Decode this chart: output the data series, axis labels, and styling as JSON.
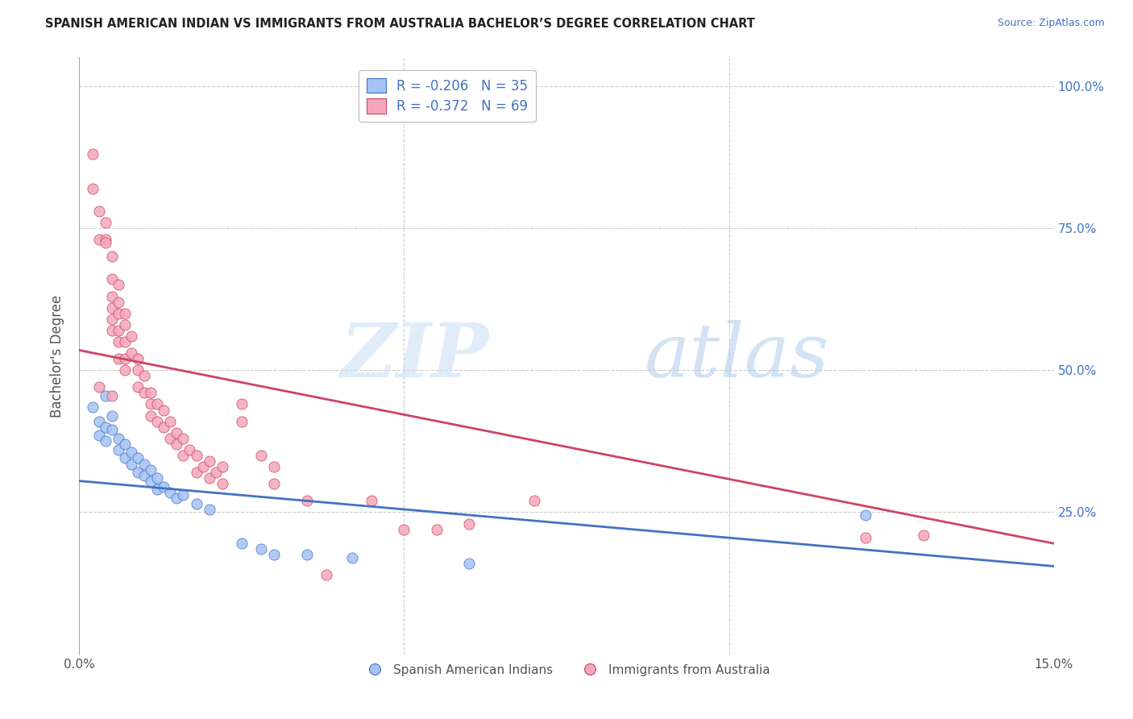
{
  "title": "SPANISH AMERICAN INDIAN VS IMMIGRANTS FROM AUSTRALIA BACHELOR’S DEGREE CORRELATION CHART",
  "source": "Source: ZipAtlas.com",
  "ylabel": "Bachelor's Degree",
  "right_ytick_labels": [
    "100.0%",
    "75.0%",
    "50.0%",
    "25.0%"
  ],
  "right_ytick_values": [
    1.0,
    0.75,
    0.5,
    0.25
  ],
  "xlim": [
    0.0,
    0.15
  ],
  "ylim": [
    0.0,
    1.05
  ],
  "legend_r1": "R = -0.206   N = 35",
  "legend_r2": "R = -0.372   N = 69",
  "color_blue": "#a4c2f4",
  "color_pink": "#f4a7b9",
  "trendline_blue": "#4472c4",
  "trendline_pink": "#cc4466",
  "blue_scatter": [
    [
      0.002,
      0.435
    ],
    [
      0.003,
      0.41
    ],
    [
      0.003,
      0.385
    ],
    [
      0.004,
      0.4
    ],
    [
      0.004,
      0.375
    ],
    [
      0.005,
      0.42
    ],
    [
      0.005,
      0.395
    ],
    [
      0.006,
      0.38
    ],
    [
      0.006,
      0.36
    ],
    [
      0.007,
      0.37
    ],
    [
      0.007,
      0.345
    ],
    [
      0.008,
      0.355
    ],
    [
      0.008,
      0.335
    ],
    [
      0.009,
      0.345
    ],
    [
      0.009,
      0.32
    ],
    [
      0.01,
      0.335
    ],
    [
      0.01,
      0.315
    ],
    [
      0.011,
      0.325
    ],
    [
      0.011,
      0.305
    ],
    [
      0.012,
      0.31
    ],
    [
      0.012,
      0.29
    ],
    [
      0.013,
      0.295
    ],
    [
      0.014,
      0.285
    ],
    [
      0.015,
      0.275
    ],
    [
      0.016,
      0.28
    ],
    [
      0.018,
      0.265
    ],
    [
      0.02,
      0.255
    ],
    [
      0.025,
      0.195
    ],
    [
      0.028,
      0.185
    ],
    [
      0.03,
      0.175
    ],
    [
      0.035,
      0.175
    ],
    [
      0.042,
      0.17
    ],
    [
      0.06,
      0.16
    ],
    [
      0.121,
      0.245
    ],
    [
      0.004,
      0.455
    ]
  ],
  "pink_scatter": [
    [
      0.002,
      0.88
    ],
    [
      0.002,
      0.82
    ],
    [
      0.003,
      0.78
    ],
    [
      0.003,
      0.73
    ],
    [
      0.004,
      0.76
    ],
    [
      0.004,
      0.73
    ],
    [
      0.004,
      0.725
    ],
    [
      0.005,
      0.7
    ],
    [
      0.005,
      0.66
    ],
    [
      0.005,
      0.63
    ],
    [
      0.005,
      0.61
    ],
    [
      0.005,
      0.59
    ],
    [
      0.005,
      0.57
    ],
    [
      0.006,
      0.65
    ],
    [
      0.006,
      0.62
    ],
    [
      0.006,
      0.6
    ],
    [
      0.006,
      0.57
    ],
    [
      0.006,
      0.55
    ],
    [
      0.006,
      0.52
    ],
    [
      0.007,
      0.6
    ],
    [
      0.007,
      0.58
    ],
    [
      0.007,
      0.55
    ],
    [
      0.007,
      0.52
    ],
    [
      0.007,
      0.5
    ],
    [
      0.008,
      0.56
    ],
    [
      0.008,
      0.53
    ],
    [
      0.009,
      0.52
    ],
    [
      0.009,
      0.5
    ],
    [
      0.009,
      0.47
    ],
    [
      0.01,
      0.49
    ],
    [
      0.01,
      0.46
    ],
    [
      0.011,
      0.46
    ],
    [
      0.011,
      0.44
    ],
    [
      0.011,
      0.42
    ],
    [
      0.012,
      0.44
    ],
    [
      0.012,
      0.41
    ],
    [
      0.013,
      0.43
    ],
    [
      0.013,
      0.4
    ],
    [
      0.014,
      0.41
    ],
    [
      0.014,
      0.38
    ],
    [
      0.015,
      0.39
    ],
    [
      0.015,
      0.37
    ],
    [
      0.016,
      0.38
    ],
    [
      0.016,
      0.35
    ],
    [
      0.017,
      0.36
    ],
    [
      0.018,
      0.35
    ],
    [
      0.018,
      0.32
    ],
    [
      0.019,
      0.33
    ],
    [
      0.02,
      0.34
    ],
    [
      0.02,
      0.31
    ],
    [
      0.021,
      0.32
    ],
    [
      0.022,
      0.33
    ],
    [
      0.022,
      0.3
    ],
    [
      0.025,
      0.44
    ],
    [
      0.025,
      0.41
    ],
    [
      0.028,
      0.35
    ],
    [
      0.03,
      0.33
    ],
    [
      0.03,
      0.3
    ],
    [
      0.035,
      0.27
    ],
    [
      0.038,
      0.14
    ],
    [
      0.045,
      0.27
    ],
    [
      0.05,
      0.22
    ],
    [
      0.055,
      0.22
    ],
    [
      0.06,
      0.23
    ],
    [
      0.07,
      0.27
    ],
    [
      0.121,
      0.205
    ],
    [
      0.13,
      0.21
    ],
    [
      0.003,
      0.47
    ],
    [
      0.005,
      0.455
    ]
  ],
  "blue_trend_x": [
    0.0,
    0.15
  ],
  "blue_trend_y": [
    0.305,
    0.155
  ],
  "pink_trend_x": [
    0.0,
    0.15
  ],
  "pink_trend_y": [
    0.535,
    0.195
  ],
  "watermark_line1": "ZIP",
  "watermark_line2": "atlas",
  "watermark_color": "#cfe2f3",
  "background_color": "#ffffff",
  "grid_color": "#cccccc",
  "grid_linestyle": "--"
}
